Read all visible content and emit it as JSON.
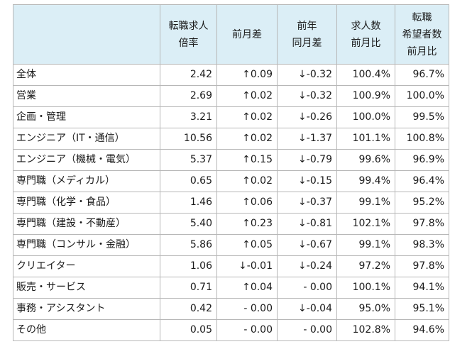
{
  "table": {
    "headers": [
      {
        "lines": []
      },
      {
        "lines": [
          "転職求人",
          "倍率"
        ]
      },
      {
        "lines": [
          "前月差"
        ]
      },
      {
        "lines": [
          "前年",
          "同月差"
        ]
      },
      {
        "lines": [
          "求人数",
          "前月比"
        ]
      },
      {
        "lines": [
          "転職",
          "希望者数",
          "前月比"
        ]
      }
    ],
    "rows": [
      {
        "label": "全体",
        "ratio": "2.42",
        "mom": "↑0.09",
        "yoy": "↓-0.32",
        "jobs": "100.4%",
        "seekers": "96.7%"
      },
      {
        "label": "営業",
        "ratio": "2.69",
        "mom": "↑0.02",
        "yoy": "↓-0.32",
        "jobs": "100.9%",
        "seekers": "100.0%"
      },
      {
        "label": "企画・管理",
        "ratio": "3.21",
        "mom": "↑0.02",
        "yoy": "↓-0.26",
        "jobs": "100.0%",
        "seekers": "99.5%"
      },
      {
        "label": "エンジニア（IT・通信）",
        "ratio": "10.56",
        "mom": "↑0.02",
        "yoy": "↓-1.37",
        "jobs": "101.1%",
        "seekers": "100.8%"
      },
      {
        "label": "エンジニア（機械・電気）",
        "ratio": "5.37",
        "mom": "↑0.15",
        "yoy": "↓-0.79",
        "jobs": "99.6%",
        "seekers": "96.9%"
      },
      {
        "label": "専門職（メディカル）",
        "ratio": "0.65",
        "mom": "↑0.02",
        "yoy": "↓-0.15",
        "jobs": "99.4%",
        "seekers": "96.4%"
      },
      {
        "label": "専門職（化学・食品）",
        "ratio": "1.46",
        "mom": "↑0.06",
        "yoy": "↓-0.37",
        "jobs": "99.1%",
        "seekers": "95.2%"
      },
      {
        "label": "専門職（建設・不動産）",
        "ratio": "5.40",
        "mom": "↑0.23",
        "yoy": "↓-0.81",
        "jobs": "102.1%",
        "seekers": "97.8%"
      },
      {
        "label": "専門職（コンサル・金融）",
        "ratio": "5.86",
        "mom": "↑0.05",
        "yoy": "↓-0.67",
        "jobs": "99.1%",
        "seekers": "98.3%"
      },
      {
        "label": "クリエイター",
        "ratio": "1.06",
        "mom": "↓-0.01",
        "yoy": "↓-0.24",
        "jobs": "97.2%",
        "seekers": "97.8%"
      },
      {
        "label": "販売・サービス",
        "ratio": "0.71",
        "mom": "↑0.04",
        "yoy": "- 0.00",
        "jobs": "100.1%",
        "seekers": "94.1%"
      },
      {
        "label": "事務・アシスタント",
        "ratio": "0.42",
        "mom": "- 0.00",
        "yoy": "↓-0.04",
        "jobs": "95.0%",
        "seekers": "95.1%"
      },
      {
        "label": "その他",
        "ratio": "0.05",
        "mom": "- 0.00",
        "yoy": "- 0.00",
        "jobs": "102.8%",
        "seekers": "94.6%"
      }
    ]
  },
  "colors": {
    "header_bg": "#dbeef6",
    "border": "#b7b7b7",
    "text": "#1a1a1a"
  }
}
